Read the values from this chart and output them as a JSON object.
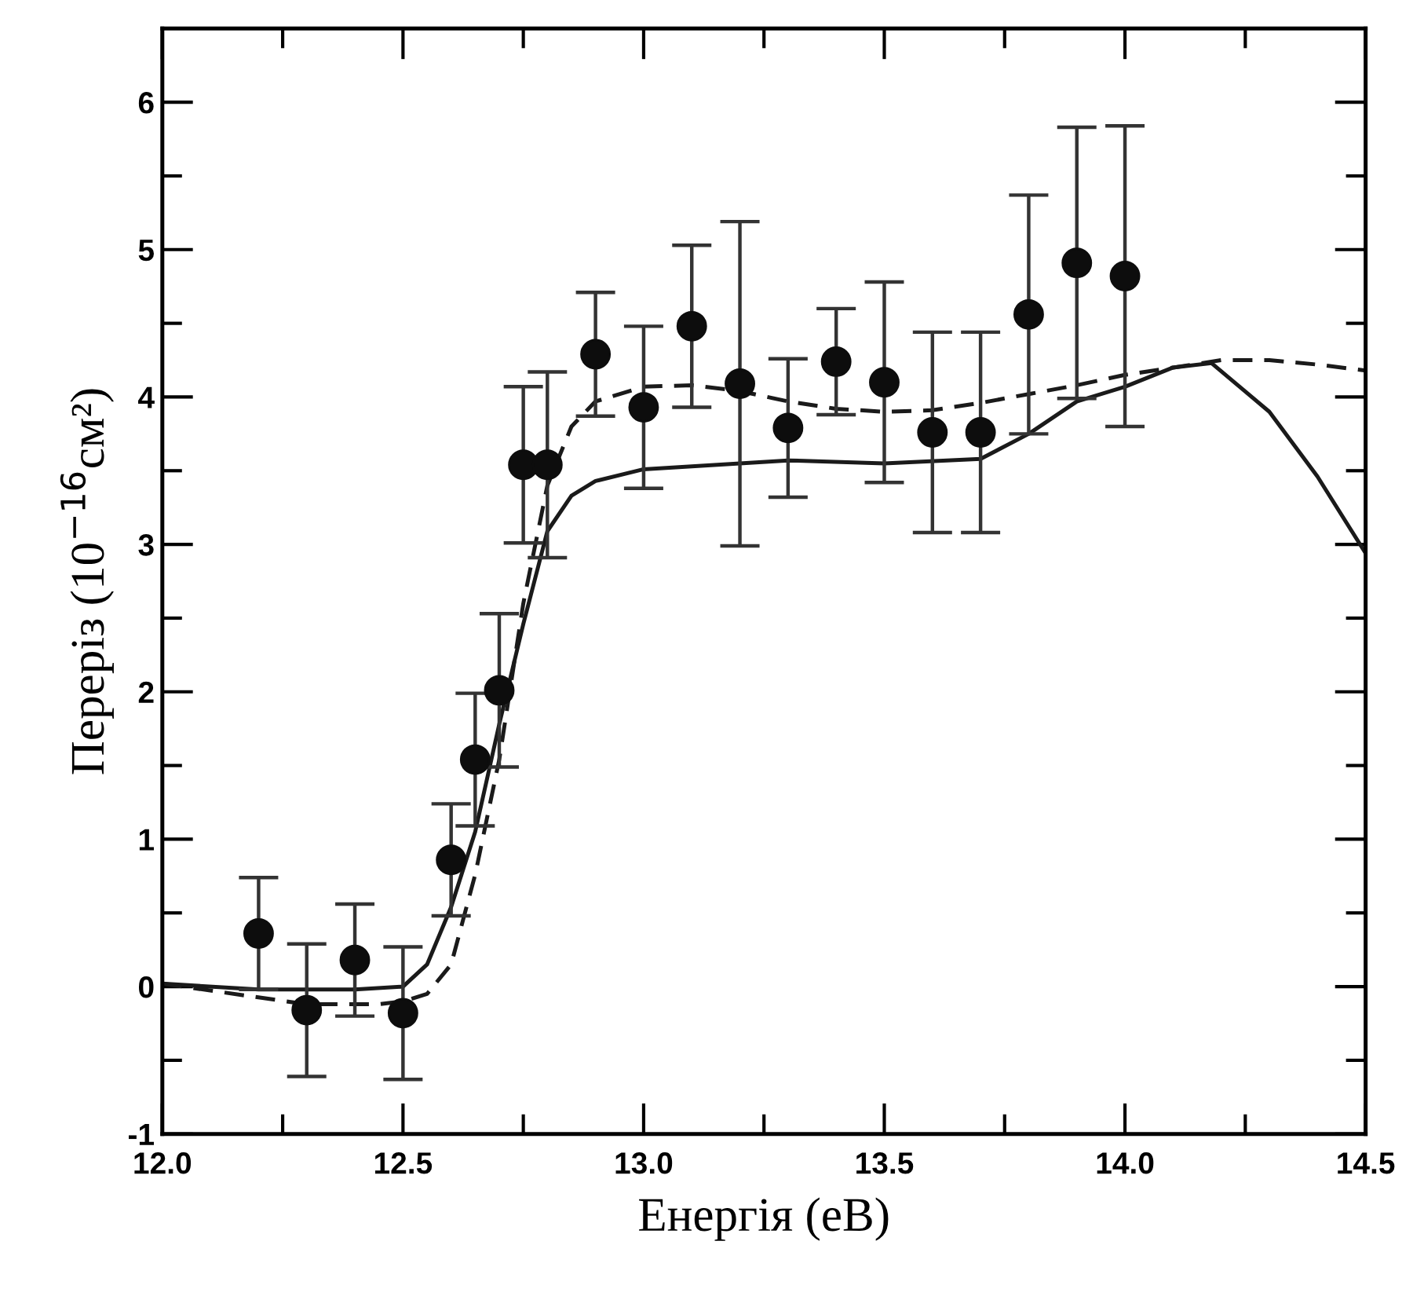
{
  "chart_data": {
    "type": "scatter",
    "xlabel": "Енергія (еВ)",
    "ylabel": "Переріз (10$^{−16}$см²)",
    "xlim": [
      12.0,
      14.5
    ],
    "ylim": [
      -1,
      6.5
    ],
    "xticks": [
      {
        "value": 12.0,
        "label": "12.0"
      },
      {
        "value": 12.25,
        "label": null
      },
      {
        "value": 12.5,
        "label": "12.5"
      },
      {
        "value": 12.75,
        "label": null
      },
      {
        "value": 13.0,
        "label": "13.0"
      },
      {
        "value": 13.25,
        "label": null
      },
      {
        "value": 13.5,
        "label": "13.5"
      },
      {
        "value": 13.75,
        "label": null
      },
      {
        "value": 14.0,
        "label": "14.0"
      },
      {
        "value": 14.25,
        "label": null
      },
      {
        "value": 14.5,
        "label": "14.5"
      }
    ],
    "yticks": [
      -1,
      {
        "value": -0.5,
        "label": null
      },
      0,
      {
        "value": 0.5,
        "label": null
      },
      1,
      {
        "value": 1.5,
        "label": null
      },
      2,
      {
        "value": 2.5,
        "label": null
      },
      3,
      {
        "value": 3.5,
        "label": null
      },
      4,
      {
        "value": 4.5,
        "label": null
      },
      5,
      {
        "value": 5.5,
        "label": null
      },
      6
    ],
    "grid": false,
    "series": [
      {
        "type": "line",
        "color": "#1a1a1a",
        "line_style": "solid",
        "marker": "none",
        "x": [
          12.0,
          12.2,
          12.4,
          12.5,
          12.55,
          12.6,
          12.65,
          12.7,
          12.75,
          12.8,
          12.85,
          12.9,
          13.0,
          13.2,
          13.3,
          13.5,
          13.7,
          13.8,
          13.9,
          14.0,
          14.1,
          14.18,
          14.3,
          14.4,
          14.5
        ],
        "values": [
          0.02,
          -0.02,
          -0.02,
          0.0,
          0.15,
          0.54,
          1.05,
          1.78,
          2.46,
          3.09,
          3.33,
          3.43,
          3.51,
          3.55,
          3.57,
          3.55,
          3.58,
          3.75,
          3.97,
          4.07,
          4.2,
          4.23,
          3.9,
          3.46,
          2.94
        ]
      },
      {
        "type": "line",
        "color": "#1a1a1a",
        "line_style": "dashed",
        "marker": "none",
        "x": [
          12.0,
          12.3,
          12.45,
          12.5,
          12.55,
          12.6,
          12.65,
          12.7,
          12.75,
          12.8,
          12.85,
          12.9,
          13.0,
          13.1,
          13.2,
          13.3,
          13.4,
          13.5,
          13.6,
          13.7,
          13.8,
          13.9,
          14.0,
          14.1,
          14.2,
          14.3,
          14.4,
          14.5
        ],
        "values": [
          0.02,
          -0.12,
          -0.12,
          -0.1,
          -0.05,
          0.15,
          0.76,
          1.54,
          2.6,
          3.4,
          3.8,
          3.97,
          4.07,
          4.08,
          4.04,
          3.97,
          3.92,
          3.9,
          3.91,
          3.96,
          4.02,
          4.08,
          4.15,
          4.2,
          4.25,
          4.25,
          4.22,
          4.18
        ]
      },
      {
        "color": "#0d0d0d",
        "marker": "circle",
        "x": [
          12.2,
          12.3,
          12.4,
          12.5,
          12.6,
          12.65,
          12.7,
          12.75,
          12.8,
          12.9,
          13.0,
          13.1,
          13.2,
          13.3,
          13.4,
          13.5,
          13.6,
          13.7,
          13.8,
          13.9,
          14.0
        ],
        "values": [
          0.36,
          -0.16,
          0.18,
          -0.18,
          0.86,
          1.54,
          2.01,
          3.54,
          3.54,
          4.29,
          3.93,
          4.48,
          4.09,
          3.79,
          4.24,
          4.1,
          3.76,
          3.76,
          4.56,
          4.91,
          4.82
        ],
        "errors": [
          0.38,
          0.45,
          0.38,
          0.45,
          0.38,
          0.45,
          0.52,
          0.53,
          0.63,
          0.42,
          0.55,
          0.55,
          1.1,
          0.47,
          0.36,
          0.68,
          0.68,
          0.68,
          0.81,
          0.92,
          1.02
        ]
      }
    ]
  }
}
